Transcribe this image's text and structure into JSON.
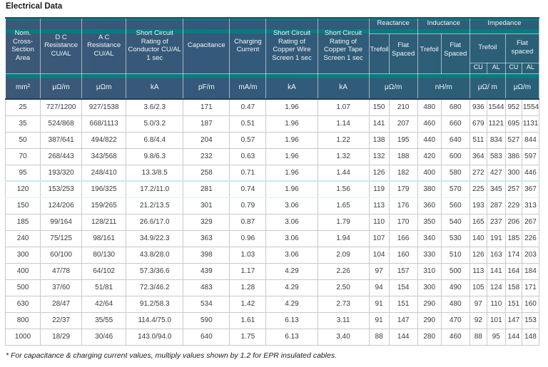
{
  "title": "Electrical Data",
  "footnote": "* For capacitance & charging current values, multiply values shown by 1.2 for EPR insulated cables.",
  "colors": {
    "header_blue_left": "#3d5878",
    "header_blue_right": "#2a6077",
    "teal_band": "#0b7a7f",
    "header_text": "#eef6f6",
    "body_text": "#3a3a3a",
    "body_border": "#c9c9c9"
  },
  "table": {
    "column_groups": {
      "simple": [
        "Nom. Cross-Section Area",
        "D C Resistance CU/AL",
        "A C Resistance CU/AL",
        "Short Circuit Rating of Conductor CU/AL 1 sec",
        "Capacitance",
        "Charging Current",
        "Short Circuit Rating of Copper Wire Screen 1 sec",
        "Short Circuit Rating of Copper Tape Screen 1 sec"
      ],
      "groups": [
        {
          "label": "Reactance",
          "sub": [
            "Trefoil",
            "Flat Spaced"
          ]
        },
        {
          "label": "Inductance",
          "sub": [
            "Trefoil",
            "Flat Spaced"
          ]
        },
        {
          "label": "Impedance",
          "sub": [
            "Trefoil",
            "Flat spaced"
          ],
          "leaf": [
            "CU",
            "AL",
            "CU",
            "AL"
          ]
        }
      ],
      "units": [
        "mm²",
        "μΩ/m",
        "μΩm",
        "kA",
        "pF/m",
        "mA/m",
        "kA",
        "kA",
        "μΩ/m",
        "nH/m",
        "μΩ/ m",
        "μΩ/m"
      ]
    },
    "rows": [
      [
        "25",
        "727/1200",
        "927/1538",
        "3.6/2.3",
        "171",
        "0.47",
        "1.96",
        "1.07",
        "150",
        "210",
        "480",
        "680",
        "936",
        "1544",
        "952",
        "1554"
      ],
      [
        "35",
        "524/868",
        "668/1113",
        "5.0/3.2",
        "187",
        "0.51",
        "1.96",
        "1.14",
        "141",
        "207",
        "460",
        "660",
        "679",
        "1121",
        "695",
        "1131"
      ],
      [
        "50",
        "387/641",
        "494/822",
        "6.8/4.4",
        "204",
        "0.57",
        "1.96",
        "1.22",
        "138",
        "195",
        "440",
        "640",
        "511",
        "834",
        "527",
        "844"
      ],
      [
        "70",
        "268/443",
        "343/568",
        "9.8/6.3",
        "232",
        "0.63",
        "1.96",
        "1.32",
        "132",
        "188",
        "420",
        "600",
        "364",
        "583",
        "386",
        "597"
      ],
      [
        "95",
        "193/320",
        "248/410",
        "13.3/8.5",
        "258",
        "0.71",
        "1.96",
        "1.44",
        "126",
        "182",
        "400",
        "580",
        "272",
        "427",
        "300",
        "446"
      ],
      [
        "120",
        "153/253",
        "196/325",
        "17.2/11.0",
        "281",
        "0.74",
        "1.96",
        "1.56",
        "119",
        "179",
        "380",
        "570",
        "225",
        "345",
        "257",
        "367"
      ],
      [
        "150",
        "124/206",
        "159/265",
        "21.2/13.5",
        "301",
        "0.79",
        "3.06",
        "1.65",
        "113",
        "176",
        "360",
        "560",
        "193",
        "287",
        "229",
        "313"
      ],
      [
        "185",
        "99/164",
        "128/211",
        "26.6/17.0",
        "329",
        "0.87",
        "3.06",
        "1.79",
        "110",
        "170",
        "350",
        "540",
        "165",
        "237",
        "206",
        "267"
      ],
      [
        "240",
        "75/125",
        "98/161",
        "34.9/22.3",
        "363",
        "0.96",
        "3.06",
        "1.94",
        "107",
        "166",
        "340",
        "530",
        "140",
        "191",
        "185",
        "226"
      ],
      [
        "300",
        "60/100",
        "80/130",
        "43.8/28.0",
        "398",
        "1.03",
        "3.06",
        "2.09",
        "104",
        "160",
        "330",
        "510",
        "126",
        "163",
        "174",
        "203"
      ],
      [
        "400",
        "47/78",
        "64/102",
        "57.3/36.6",
        "439",
        "1.17",
        "4.29",
        "2.26",
        "97",
        "157",
        "310",
        "500",
        "113",
        "141",
        "164",
        "184"
      ],
      [
        "500",
        "37/60",
        "51/81",
        "72.3/46.2",
        "483",
        "1.28",
        "4.29",
        "2.50",
        "94",
        "154",
        "300",
        "490",
        "105",
        "124",
        "158",
        "171"
      ],
      [
        "630",
        "28/47",
        "42/64",
        "91.2/58.3",
        "534",
        "1.42",
        "4.29",
        "2.73",
        "91",
        "151",
        "290",
        "480",
        "97",
        "110",
        "151",
        "160"
      ],
      [
        "800",
        "22/37",
        "35/55",
        "114.4/75.0",
        "590",
        "1.61",
        "6.13",
        "3.11",
        "91",
        "147",
        "290",
        "470",
        "92",
        "101",
        "147",
        "153"
      ],
      [
        "1000",
        "18/29",
        "30/46",
        "143.0/94.0",
        "640",
        "1.75",
        "6.13",
        "3.40",
        "88",
        "144",
        "280",
        "460",
        "88",
        "95",
        "144",
        "148"
      ]
    ]
  }
}
